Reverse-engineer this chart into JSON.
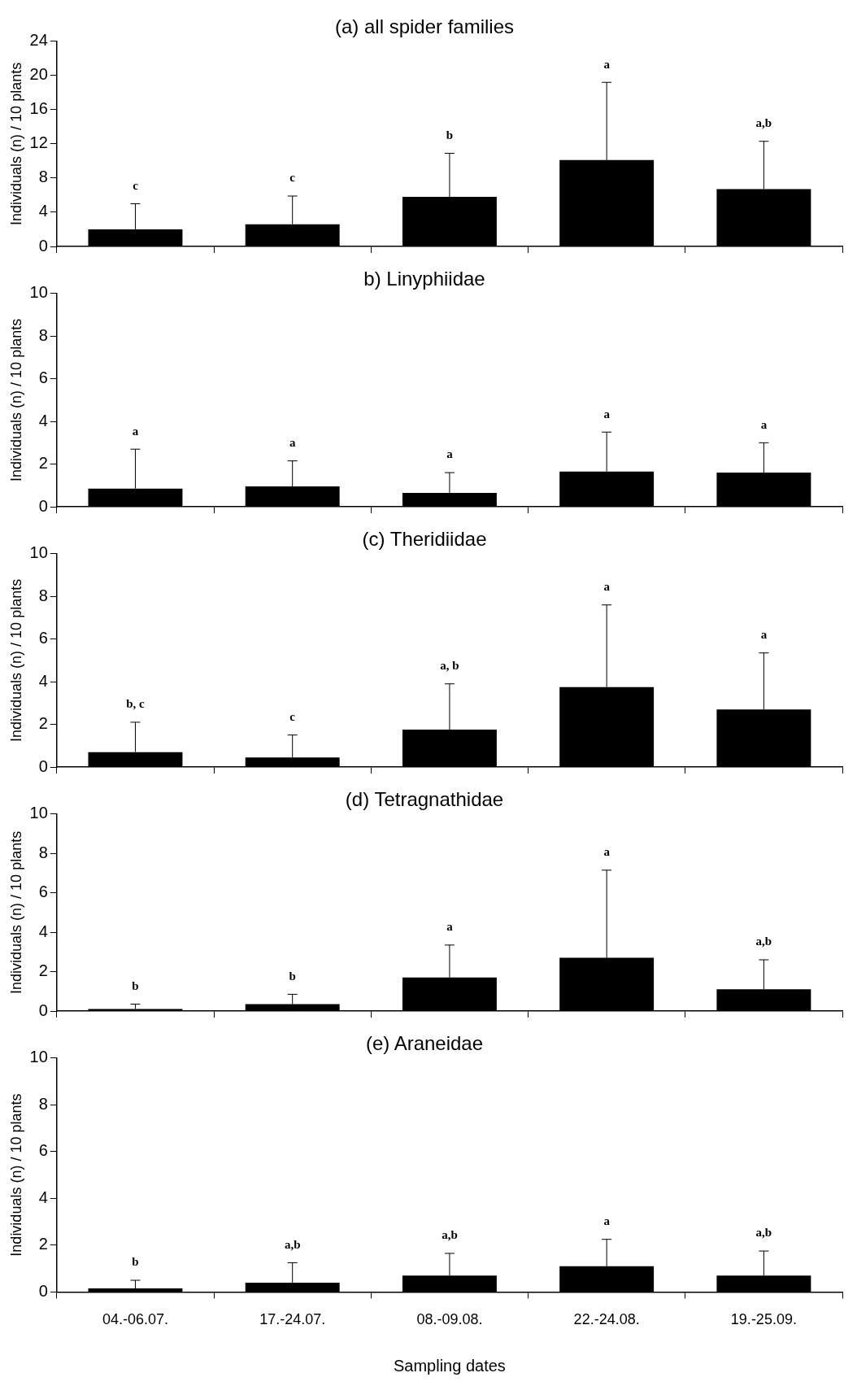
{
  "chart_data": [
    {
      "type": "bar",
      "title": "(a) all spider families",
      "ylabel": "Individuals (n) / 10 plants",
      "categories": [
        "04.-06.07.",
        "17.-24.07.",
        "08.-09.08.",
        "22.-24.08.",
        "19.-25.09."
      ],
      "values": [
        2.0,
        2.6,
        5.8,
        10.1,
        6.7
      ],
      "errors": [
        [
          2.0,
          5.0
        ],
        [
          2.6,
          5.9
        ],
        [
          5.8,
          10.9
        ],
        [
          10.1,
          19.2
        ],
        [
          6.7,
          12.3
        ]
      ],
      "color": "#000000",
      "ylim": [
        0,
        24
      ],
      "yticks": [
        0,
        4,
        8,
        12,
        16,
        20,
        24
      ],
      "grid": false,
      "legend": false,
      "tick_labels": "y",
      "annotations": [
        {
          "text": "c",
          "x": "04.-06.07.",
          "y": 5.0
        },
        {
          "text": "c",
          "x": "17.-24.07.",
          "y": 5.9
        },
        {
          "text": "b",
          "x": "08.-09.08.",
          "y": 10.9
        },
        {
          "text": "a",
          "x": "22.-24.08.",
          "y": 19.2
        },
        {
          "text": "a,b",
          "x": "19.-25.09.",
          "y": 12.3
        }
      ]
    },
    {
      "type": "bar",
      "title": "b) Linyphiidae",
      "ylabel": "Individuals (n) / 10 plants",
      "categories": [
        "04.-06.07.",
        "17.-24.07.",
        "08.-09.08.",
        "22.-24.08.",
        "19.-25.09."
      ],
      "values": [
        0.85,
        0.95,
        0.65,
        1.65,
        1.6
      ],
      "errors": [
        [
          0.85,
          2.7
        ],
        [
          0.95,
          2.15
        ],
        [
          0.65,
          1.6
        ],
        [
          1.65,
          3.5
        ],
        [
          1.6,
          3.0
        ]
      ],
      "color": "#000000",
      "ylim": [
        0,
        10
      ],
      "yticks": [
        0,
        2,
        4,
        6,
        8,
        10
      ],
      "grid": false,
      "legend": false,
      "tick_labels": "y",
      "annotations": [
        {
          "text": "a",
          "x": "04.-06.07.",
          "y": 2.7
        },
        {
          "text": "a",
          "x": "17.-24.07.",
          "y": 2.15
        },
        {
          "text": "a",
          "x": "08.-09.08.",
          "y": 1.6
        },
        {
          "text": "a",
          "x": "22.-24.08.",
          "y": 3.5
        },
        {
          "text": "a",
          "x": "19.-25.09.",
          "y": 3.0
        }
      ]
    },
    {
      "type": "bar",
      "title": "(c) Theridiidae",
      "ylabel": "Individuals (n) / 10 plants",
      "categories": [
        "04.-06.07.",
        "17.-24.07.",
        "08.-09.08.",
        "22.-24.08.",
        "19.-25.09."
      ],
      "values": [
        0.7,
        0.45,
        1.75,
        3.75,
        2.7
      ],
      "errors": [
        [
          0.7,
          2.1
        ],
        [
          0.45,
          1.5
        ],
        [
          1.75,
          3.9
        ],
        [
          3.75,
          7.6
        ],
        [
          2.7,
          5.35
        ]
      ],
      "color": "#000000",
      "ylim": [
        0,
        10
      ],
      "yticks": [
        0,
        2,
        4,
        6,
        8,
        10
      ],
      "grid": false,
      "legend": false,
      "tick_labels": "y",
      "annotations": [
        {
          "text": "b, c",
          "x": "04.-06.07.",
          "y": 2.1
        },
        {
          "text": "c",
          "x": "17.-24.07.",
          "y": 1.5
        },
        {
          "text": "a, b",
          "x": "08.-09.08.",
          "y": 3.9
        },
        {
          "text": "a",
          "x": "22.-24.08.",
          "y": 7.6
        },
        {
          "text": "a",
          "x": "19.-25.09.",
          "y": 5.35
        }
      ]
    },
    {
      "type": "bar",
      "title": "(d) Tetragnathidae",
      "ylabel": "Individuals (n) / 10 plants",
      "categories": [
        "04.-06.07.",
        "17.-24.07.",
        "08.-09.08.",
        "22.-24.08.",
        "19.-25.09."
      ],
      "values": [
        0.1,
        0.35,
        1.7,
        2.7,
        1.1
      ],
      "errors": [
        [
          0.1,
          0.35
        ],
        [
          0.35,
          0.85
        ],
        [
          1.7,
          3.35
        ],
        [
          2.7,
          7.15
        ],
        [
          1.1,
          2.6
        ]
      ],
      "color": "#000000",
      "ylim": [
        0,
        10
      ],
      "yticks": [
        0,
        2,
        4,
        6,
        8,
        10
      ],
      "grid": false,
      "legend": false,
      "tick_labels": "y",
      "annotations": [
        {
          "text": "b",
          "x": "04.-06.07.",
          "y": 0.35
        },
        {
          "text": "b",
          "x": "17.-24.07.",
          "y": 0.85
        },
        {
          "text": "a",
          "x": "08.-09.08.",
          "y": 3.35
        },
        {
          "text": "a",
          "x": "22.-24.08.",
          "y": 7.15
        },
        {
          "text": "a,b",
          "x": "19.-25.09.",
          "y": 2.6
        }
      ]
    },
    {
      "type": "bar",
      "title": "(e) Araneidae",
      "ylabel": "Individuals (n) / 10 plants",
      "xlabel": "Sampling dates",
      "categories": [
        "04.-06.07.",
        "17.-24.07.",
        "08.-09.08.",
        "22.-24.08.",
        "19.-25.09."
      ],
      "values": [
        0.15,
        0.4,
        0.7,
        1.1,
        0.7
      ],
      "errors": [
        [
          0.15,
          0.5
        ],
        [
          0.4,
          1.25
        ],
        [
          0.7,
          1.65
        ],
        [
          1.1,
          2.25
        ],
        [
          0.7,
          1.75
        ]
      ],
      "color": "#000000",
      "ylim": [
        0,
        10
      ],
      "yticks": [
        0,
        2,
        4,
        6,
        8,
        10
      ],
      "grid": false,
      "legend": false,
      "annotations": [
        {
          "text": "b",
          "x": "04.-06.07.",
          "y": 0.5
        },
        {
          "text": "a,b",
          "x": "17.-24.07.",
          "y": 1.25
        },
        {
          "text": "a,b",
          "x": "08.-09.08.",
          "y": 1.65
        },
        {
          "text": "a",
          "x": "22.-24.08.",
          "y": 2.25
        },
        {
          "text": "a,b",
          "x": "19.-25.09.",
          "y": 1.75
        }
      ]
    }
  ]
}
